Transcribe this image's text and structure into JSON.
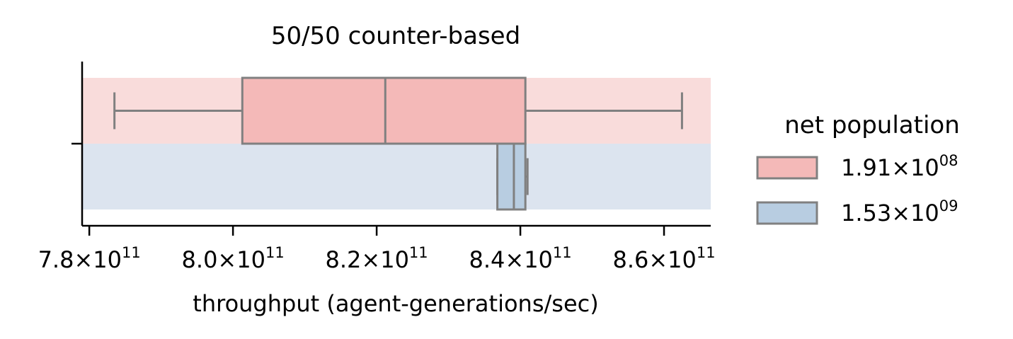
{
  "chart_data": {
    "type": "box",
    "orientation": "horizontal",
    "title": "50/50 counter-based",
    "xlabel": "throughput (agent-generations/sec)",
    "ylabel": "",
    "xlim": [
      779000000000.0,
      866500000000.0
    ],
    "x_ticks": [
      {
        "value": 780000000000.0,
        "mantissa": "7.8×10",
        "exp": "11"
      },
      {
        "value": 800000000000.0,
        "mantissa": "8.0×10",
        "exp": "11"
      },
      {
        "value": 820000000000.0,
        "mantissa": "8.2×10",
        "exp": "11"
      },
      {
        "value": 840000000000.0,
        "mantissa": "8.4×10",
        "exp": "11"
      },
      {
        "value": 860000000000.0,
        "mantissa": "8.6×10",
        "exp": "11"
      }
    ],
    "grid": false,
    "legend": {
      "title": "net population",
      "placement": "right",
      "entries": [
        {
          "mantissa": "1.91×10",
          "exp": "08"
        },
        {
          "mantissa": "1.53×10",
          "exp": "09"
        }
      ]
    },
    "series": [
      {
        "color": "#f4b9b8",
        "band_color": "#f9dcdb",
        "whisker_low": 783500000000.0,
        "q1": 801300000000.0,
        "median": 821200000000.0,
        "q3": 840700000000.0,
        "whisker_high": 862500000000.0
      },
      {
        "color": "#b8cde1",
        "band_color": "#dce4ef",
        "whisker_low": 836800000000.0,
        "q1": 836800000000.0,
        "median": 839100000000.0,
        "q3": 840700000000.0,
        "whisker_high": 841000000000.0
      }
    ],
    "box_edge_color": "#808080"
  }
}
